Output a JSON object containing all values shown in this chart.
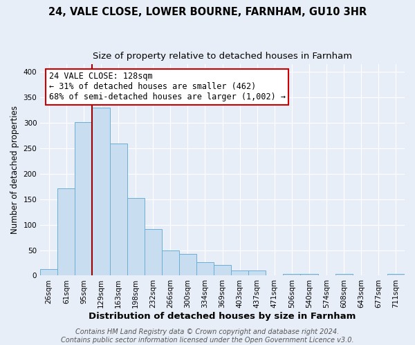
{
  "title1": "24, VALE CLOSE, LOWER BOURNE, FARNHAM, GU10 3HR",
  "title2": "Size of property relative to detached houses in Farnham",
  "xlabel": "Distribution of detached houses by size in Farnham",
  "ylabel": "Number of detached properties",
  "categories": [
    "26sqm",
    "61sqm",
    "95sqm",
    "129sqm",
    "163sqm",
    "198sqm",
    "232sqm",
    "266sqm",
    "300sqm",
    "334sqm",
    "369sqm",
    "403sqm",
    "437sqm",
    "471sqm",
    "506sqm",
    "540sqm",
    "574sqm",
    "608sqm",
    "643sqm",
    "677sqm",
    "711sqm"
  ],
  "values": [
    13,
    172,
    301,
    330,
    259,
    153,
    91,
    50,
    43,
    27,
    21,
    10,
    10,
    0,
    3,
    4,
    0,
    3,
    0,
    0,
    3
  ],
  "bar_color": "#c9ddf0",
  "bar_edge_color": "#6baed6",
  "vline_x_index": 3,
  "vline_color": "#9b0000",
  "annotation_title": "24 VALE CLOSE: 128sqm",
  "annotation_line1": "← 31% of detached houses are smaller (462)",
  "annotation_line2": "68% of semi-detached houses are larger (1,002) →",
  "annotation_box_facecolor": "#ffffff",
  "annotation_box_edgecolor": "#cc0000",
  "ylim": [
    0,
    415
  ],
  "yticks": [
    0,
    50,
    100,
    150,
    200,
    250,
    300,
    350,
    400
  ],
  "bg_color": "#e8eef8",
  "footer1": "Contains HM Land Registry data © Crown copyright and database right 2024.",
  "footer2": "Contains public sector information licensed under the Open Government Licence v3.0.",
  "title1_fontsize": 10.5,
  "title2_fontsize": 9.5,
  "xlabel_fontsize": 9.5,
  "ylabel_fontsize": 8.5,
  "tick_fontsize": 7.5,
  "annotation_fontsize": 8.5,
  "footer_fontsize": 7
}
